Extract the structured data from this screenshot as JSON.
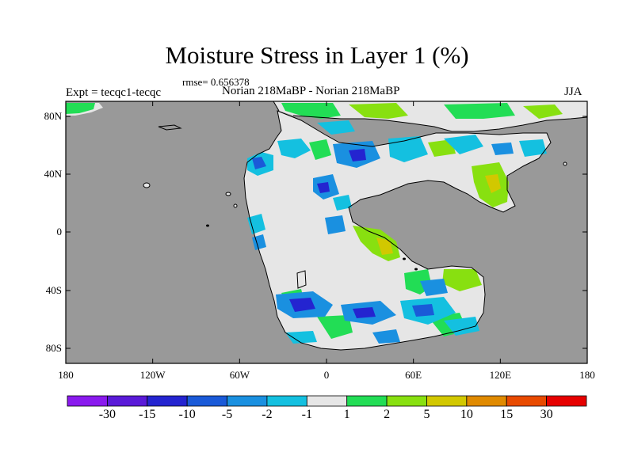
{
  "title": "Moisture Stress in Layer 1 (%)",
  "rmse": "rmse= 0.656378",
  "expt": "Expt = tecqc1-tecqc",
  "subtitle": "Norian 218MaBP - Norian 218MaBP",
  "season": "JJA",
  "lat_labels": [
    "80N",
    "40N",
    "0",
    "40S",
    "80S"
  ],
  "lon_labels": [
    "180",
    "120W",
    "60W",
    "0",
    "60E",
    "120E",
    "180"
  ],
  "colorbar": {
    "labels": [
      "-30",
      "-15",
      "-10",
      "-5",
      "-2",
      "-1",
      "1",
      "2",
      "5",
      "10",
      "15",
      "30"
    ],
    "colors": [
      "#8a1aee",
      "#5a1ad8",
      "#2424d0",
      "#1a5ad8",
      "#1a90e0",
      "#14c0e0",
      "#e6e6e6",
      "#22dd55",
      "#88e010",
      "#d2c800",
      "#e08a00",
      "#e84a00",
      "#e60000"
    ]
  },
  "colors": {
    "ocean": "#999999",
    "land_neutral": "#e6e6e6"
  }
}
